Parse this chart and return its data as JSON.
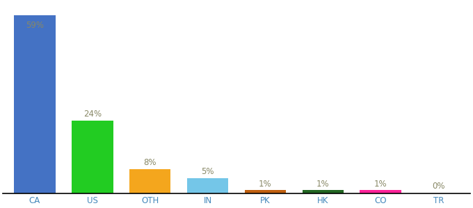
{
  "categories": [
    "CA",
    "US",
    "OTH",
    "IN",
    "PK",
    "HK",
    "CO",
    "TR"
  ],
  "values": [
    59,
    24,
    8,
    5,
    1,
    1,
    1,
    0
  ],
  "labels": [
    "59%",
    "24%",
    "8%",
    "5%",
    "1%",
    "1%",
    "1%",
    "0%"
  ],
  "colors": [
    "#4472C4",
    "#22CC22",
    "#F4A61D",
    "#74C6E8",
    "#C06010",
    "#226622",
    "#FF2299",
    "#AAAAAA"
  ],
  "ylim": [
    0,
    63
  ],
  "bar_width": 0.72,
  "label_fontsize": 8.5,
  "tick_fontsize": 8.5,
  "tick_color": "#4488BB",
  "label_color": "#888866",
  "fig_width": 6.8,
  "fig_height": 3.0,
  "dpi": 100
}
